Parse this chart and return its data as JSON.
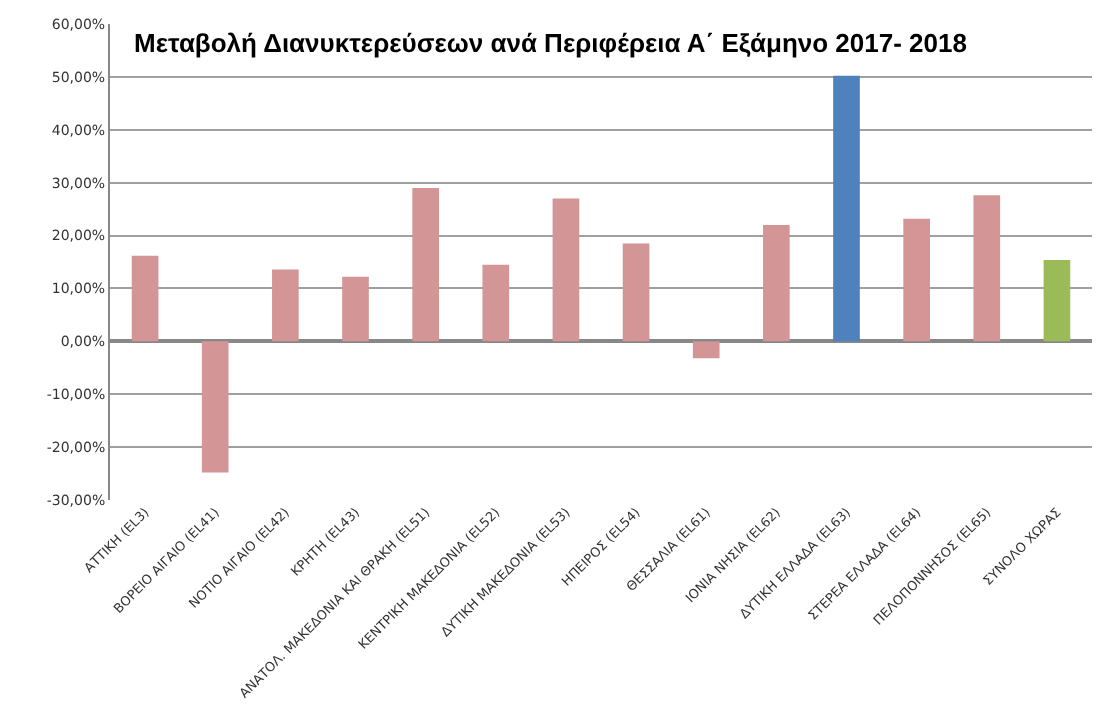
{
  "chart_data": {
    "type": "bar",
    "title": "Μεταβολή Διανυκτερεύσεων ανά Περιφέρεια Α΄ Εξάμηνο 2017- 2018",
    "categories": [
      "ΑΤΤΙΚΗ (EL3)",
      "ΒΟΡΕΙΟ ΑΙΓΑΙΟ (EL41)",
      "ΝΟΤΙΟ ΑΙΓΑΙΟ (EL42)",
      "ΚΡΗΤΗ (EL43)",
      "ΑΝΑΤΟΛ. ΜΑΚΕΔΟΝΙΑ ΚΑΙ ΘΡΑΚΗ (EL51)",
      "ΚΕΝΤΡΙΚΗ ΜΑΚΕΔΟΝΙΑ (EL52)",
      "ΔΥΤΙΚΗ ΜΑΚΕΔΟΝΙΑ (EL53)",
      "ΗΠΕΙΡΟΣ (EL54)",
      "ΘΕΣΣΑΛΙΑ (EL61)",
      "ΙΟΝΙΑ ΝΗΣΙΑ (EL62)",
      "ΔΥΤΙΚΗ ΕΛΛΑΔΑ (EL63)",
      "ΣΤΕΡΕΑ ΕΛΛΑΔΑ (EL64)",
      "ΠΕΛΟΠΟΝΝΗΣΟΣ (EL65)",
      "ΣΥΝΟΛΟ ΧΩΡΑΣ"
    ],
    "values": [
      16.2,
      -24.8,
      13.6,
      12.2,
      29.0,
      14.5,
      27.0,
      18.5,
      -3.2,
      22.0,
      50.2,
      23.2,
      27.6,
      15.4
    ],
    "colors": [
      "#d39595",
      "#d39595",
      "#d39595",
      "#d39595",
      "#d39595",
      "#d39595",
      "#d39595",
      "#d39595",
      "#d39595",
      "#d39595",
      "#4f81bd",
      "#d39595",
      "#d39595",
      "#9bbb59"
    ],
    "ylim": [
      -30,
      60
    ],
    "yticks": [
      {
        "value": -30,
        "label": "-30,00%"
      },
      {
        "value": -20,
        "label": "-20,00%"
      },
      {
        "value": -10,
        "label": "-10,00%"
      },
      {
        "value": 0,
        "label": "0,00%"
      },
      {
        "value": 10,
        "label": "10,00%"
      },
      {
        "value": 20,
        "label": "20,00%"
      },
      {
        "value": 30,
        "label": "30,00%"
      },
      {
        "value": 40,
        "label": "40,00%"
      },
      {
        "value": 50,
        "label": "50,00%"
      },
      {
        "value": 60,
        "label": "60,00%"
      }
    ],
    "grid": "y",
    "legend": false
  }
}
